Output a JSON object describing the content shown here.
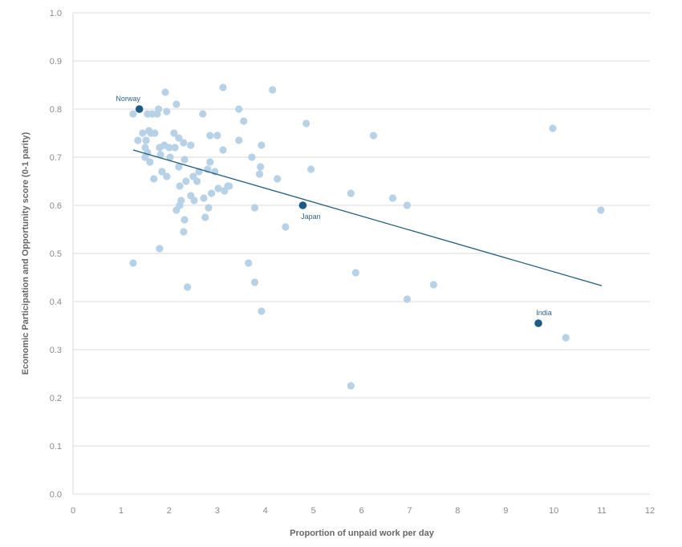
{
  "chart_data": {
    "type": "scatter",
    "title": "",
    "xlabel": "Proportion of unpaid work per day",
    "ylabel": "Economic Participation and Opportunity score (0-1 parity)",
    "xlim": [
      0,
      12
    ],
    "ylim": [
      0,
      1
    ],
    "x_ticks": [
      "0",
      "1",
      "2",
      "3",
      "4",
      "5",
      "6",
      "7",
      "8",
      "9",
      "10",
      "11",
      "12"
    ],
    "y_ticks": [
      "0.0",
      "0.1",
      "0.2",
      "0.3",
      "0.4",
      "0.5",
      "0.6",
      "0.7",
      "0.8",
      "0.9",
      "1.0"
    ],
    "grid": "horizontal",
    "colors": {
      "points": "#b7d1e6",
      "highlight": "#1d5b86",
      "trend": "#1f5e7a",
      "grid": "#d9d9d9",
      "text": "#8a8a8a"
    },
    "points": [
      {
        "x": 1.25,
        "y": 0.79
      },
      {
        "x": 1.25,
        "y": 0.48
      },
      {
        "x": 1.35,
        "y": 0.735
      },
      {
        "x": 1.45,
        "y": 0.75
      },
      {
        "x": 1.5,
        "y": 0.7
      },
      {
        "x": 1.5,
        "y": 0.72
      },
      {
        "x": 1.52,
        "y": 0.735
      },
      {
        "x": 1.55,
        "y": 0.79
      },
      {
        "x": 1.55,
        "y": 0.71
      },
      {
        "x": 1.58,
        "y": 0.755
      },
      {
        "x": 1.6,
        "y": 0.69
      },
      {
        "x": 1.62,
        "y": 0.75
      },
      {
        "x": 1.65,
        "y": 0.79
      },
      {
        "x": 1.68,
        "y": 0.655
      },
      {
        "x": 1.7,
        "y": 0.75
      },
      {
        "x": 1.75,
        "y": 0.79
      },
      {
        "x": 1.78,
        "y": 0.8
      },
      {
        "x": 1.8,
        "y": 0.72
      },
      {
        "x": 1.82,
        "y": 0.705
      },
      {
        "x": 1.8,
        "y": 0.51
      },
      {
        "x": 1.85,
        "y": 0.67
      },
      {
        "x": 1.9,
        "y": 0.725
      },
      {
        "x": 1.92,
        "y": 0.835
      },
      {
        "x": 1.95,
        "y": 0.795
      },
      {
        "x": 1.95,
        "y": 0.66
      },
      {
        "x": 2.0,
        "y": 0.72
      },
      {
        "x": 2.02,
        "y": 0.7
      },
      {
        "x": 2.1,
        "y": 0.75
      },
      {
        "x": 2.12,
        "y": 0.72
      },
      {
        "x": 2.15,
        "y": 0.81
      },
      {
        "x": 2.15,
        "y": 0.59
      },
      {
        "x": 2.2,
        "y": 0.74
      },
      {
        "x": 2.2,
        "y": 0.68
      },
      {
        "x": 2.22,
        "y": 0.64
      },
      {
        "x": 2.25,
        "y": 0.61
      },
      {
        "x": 2.22,
        "y": 0.6
      },
      {
        "x": 2.3,
        "y": 0.73
      },
      {
        "x": 2.32,
        "y": 0.695
      },
      {
        "x": 2.32,
        "y": 0.57
      },
      {
        "x": 2.3,
        "y": 0.545
      },
      {
        "x": 2.35,
        "y": 0.65
      },
      {
        "x": 2.38,
        "y": 0.43
      },
      {
        "x": 2.45,
        "y": 0.725
      },
      {
        "x": 2.45,
        "y": 0.62
      },
      {
        "x": 2.5,
        "y": 0.66
      },
      {
        "x": 2.52,
        "y": 0.61
      },
      {
        "x": 2.58,
        "y": 0.65
      },
      {
        "x": 2.62,
        "y": 0.67
      },
      {
        "x": 2.7,
        "y": 0.79
      },
      {
        "x": 2.72,
        "y": 0.615
      },
      {
        "x": 2.75,
        "y": 0.575
      },
      {
        "x": 2.8,
        "y": 0.675
      },
      {
        "x": 2.82,
        "y": 0.595
      },
      {
        "x": 2.85,
        "y": 0.745
      },
      {
        "x": 2.85,
        "y": 0.69
      },
      {
        "x": 2.88,
        "y": 0.625
      },
      {
        "x": 2.95,
        "y": 0.67
      },
      {
        "x": 3.0,
        "y": 0.745
      },
      {
        "x": 3.02,
        "y": 0.635
      },
      {
        "x": 3.12,
        "y": 0.845
      },
      {
        "x": 3.12,
        "y": 0.715
      },
      {
        "x": 3.15,
        "y": 0.63
      },
      {
        "x": 3.22,
        "y": 0.64
      },
      {
        "x": 3.25,
        "y": 0.64
      },
      {
        "x": 3.45,
        "y": 0.8
      },
      {
        "x": 3.45,
        "y": 0.735
      },
      {
        "x": 3.55,
        "y": 0.775
      },
      {
        "x": 3.65,
        "y": 0.48
      },
      {
        "x": 3.72,
        "y": 0.7
      },
      {
        "x": 3.78,
        "y": 0.595
      },
      {
        "x": 3.78,
        "y": 0.44
      },
      {
        "x": 3.88,
        "y": 0.665
      },
      {
        "x": 3.9,
        "y": 0.68
      },
      {
        "x": 3.92,
        "y": 0.725
      },
      {
        "x": 3.92,
        "y": 0.38
      },
      {
        "x": 4.15,
        "y": 0.84
      },
      {
        "x": 4.25,
        "y": 0.655
      },
      {
        "x": 4.42,
        "y": 0.555
      },
      {
        "x": 4.85,
        "y": 0.77
      },
      {
        "x": 4.95,
        "y": 0.675
      },
      {
        "x": 5.78,
        "y": 0.625
      },
      {
        "x": 5.78,
        "y": 0.225
      },
      {
        "x": 5.88,
        "y": 0.46
      },
      {
        "x": 6.25,
        "y": 0.745
      },
      {
        "x": 6.65,
        "y": 0.615
      },
      {
        "x": 6.95,
        "y": 0.6
      },
      {
        "x": 6.95,
        "y": 0.405
      },
      {
        "x": 7.5,
        "y": 0.435
      },
      {
        "x": 9.98,
        "y": 0.76
      },
      {
        "x": 10.25,
        "y": 0.325
      },
      {
        "x": 10.98,
        "y": 0.59
      }
    ],
    "highlighted": [
      {
        "label": "Norway",
        "x": 1.38,
        "y": 0.8
      },
      {
        "label": "Japan",
        "x": 4.78,
        "y": 0.6
      },
      {
        "label": "India",
        "x": 9.68,
        "y": 0.355
      }
    ],
    "trendline": {
      "x": [
        1.25,
        11.0
      ],
      "y": [
        0.715,
        0.433
      ]
    }
  }
}
